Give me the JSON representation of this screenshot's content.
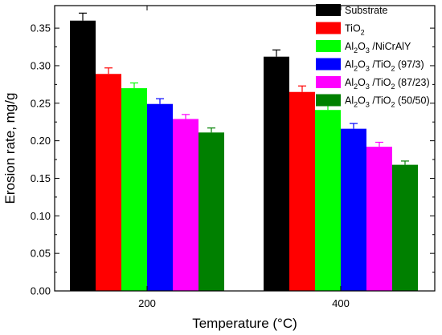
{
  "chart_data": {
    "type": "bar",
    "xlabel": "Temperature (°C)",
    "ylabel": "Erosion rate, mg/g",
    "ylim": [
      0,
      0.38
    ],
    "yticks": [
      "0.00",
      "0.05",
      "0.10",
      "0.15",
      "0.20",
      "0.25",
      "0.30",
      "0.35"
    ],
    "categories": [
      "200",
      "400"
    ],
    "series": [
      {
        "name": "Substrate",
        "legend": [
          {
            "t": "Substrate"
          }
        ],
        "color": "#000000",
        "values": [
          0.36,
          0.312
        ],
        "errors": [
          0.01,
          0.009
        ]
      },
      {
        "name": "TiO2",
        "legend": [
          {
            "t": "TiO"
          },
          {
            "t": "2",
            "sub": true
          }
        ],
        "color": "#ff0000",
        "values": [
          0.289,
          0.265
        ],
        "errors": [
          0.008,
          0.008
        ]
      },
      {
        "name": "Al2O3 /NiCrAlY",
        "legend": [
          {
            "t": "Al"
          },
          {
            "t": "2",
            "sub": true
          },
          {
            "t": "O"
          },
          {
            "t": "3",
            "sub": true
          },
          {
            "t": " /NiCrAlY"
          }
        ],
        "color": "#00ff00",
        "values": [
          0.27,
          0.241
        ],
        "errors": [
          0.007,
          0.007
        ]
      },
      {
        "name": "Al2O3 /TiO2 (97/3)",
        "legend": [
          {
            "t": "Al"
          },
          {
            "t": "2",
            "sub": true
          },
          {
            "t": "O"
          },
          {
            "t": "3",
            "sub": true
          },
          {
            "t": " /TiO"
          },
          {
            "t": "2",
            "sub": true
          },
          {
            "t": " (97/3)"
          }
        ],
        "color": "#0000ff",
        "values": [
          0.249,
          0.216
        ],
        "errors": [
          0.007,
          0.007
        ]
      },
      {
        "name": "Al2O3 /TiO2 (87/23)",
        "legend": [
          {
            "t": "Al"
          },
          {
            "t": "2",
            "sub": true
          },
          {
            "t": "O"
          },
          {
            "t": "3",
            "sub": true
          },
          {
            "t": " /TiO"
          },
          {
            "t": "2",
            "sub": true
          },
          {
            "t": " (87/23)"
          }
        ],
        "color": "#ff00ff",
        "values": [
          0.229,
          0.192
        ],
        "errors": [
          0.006,
          0.006
        ]
      },
      {
        "name": "Al2O3 /TiO2 (50/50)",
        "legend": [
          {
            "t": "Al"
          },
          {
            "t": "2",
            "sub": true
          },
          {
            "t": "O"
          },
          {
            "t": "3",
            "sub": true
          },
          {
            "t": " /TiO"
          },
          {
            "t": "2",
            "sub": true
          },
          {
            "t": " (50/50)"
          }
        ],
        "color": "#008000",
        "values": [
          0.211,
          0.168
        ],
        "errors": [
          0.006,
          0.005
        ]
      }
    ],
    "legend_position": "top-right",
    "grid": false
  }
}
